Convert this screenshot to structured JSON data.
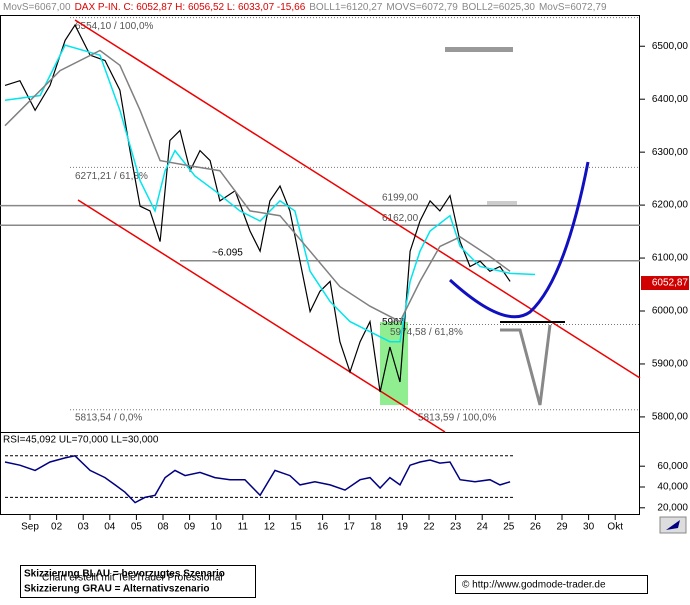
{
  "header": [
    "MovS=6067,00",
    "DAX P-IN. C: 6052,87 H: 6056,52 L: 6033,07 -15,66",
    "BOLL1=6120,27",
    "MOVS=6072,79",
    "BOLL2=6025,30",
    "MovS=6072,79"
  ],
  "chart_data": [
    {
      "type": "line",
      "xlim": [
        -1.128,
        22.932
      ],
      "ylim": [
        5771.5,
        6559
      ],
      "xticks": [
        {
          "value": 0,
          "label": "Sep"
        },
        {
          "value": 1,
          "label": "02"
        },
        {
          "value": 2,
          "label": "03"
        },
        {
          "value": 3,
          "label": "04"
        },
        {
          "value": 4,
          "label": "05"
        },
        {
          "value": 5,
          "label": "08"
        },
        {
          "value": 6,
          "label": "09"
        },
        {
          "value": 7,
          "label": "10"
        },
        {
          "value": 8,
          "label": "11"
        },
        {
          "value": 9,
          "label": "12"
        },
        {
          "value": 10,
          "label": "15"
        },
        {
          "value": 11,
          "label": "16"
        },
        {
          "value": 12,
          "label": "17"
        },
        {
          "value": 13,
          "label": "18"
        },
        {
          "value": 14,
          "label": "19"
        },
        {
          "value": 15,
          "label": "22"
        },
        {
          "value": 16,
          "label": "23"
        },
        {
          "value": 17,
          "label": "24"
        },
        {
          "value": 18,
          "label": "25"
        },
        {
          "value": 19,
          "label": "26"
        },
        {
          "value": 20,
          "label": "29"
        },
        {
          "value": 21,
          "label": "30"
        },
        {
          "value": 22,
          "label": "Okt"
        }
      ],
      "yticks": [
        {
          "value": 5800,
          "label": "5800,00"
        },
        {
          "value": 5900,
          "label": "5900,00"
        },
        {
          "value": 6000,
          "label": "6000,00"
        },
        {
          "value": 6100,
          "label": "6100,00"
        },
        {
          "value": 6200,
          "label": "6200,00"
        },
        {
          "value": 6300,
          "label": "6300,00"
        },
        {
          "value": 6400,
          "label": "6400,00"
        },
        {
          "value": 6500,
          "label": "6500,00"
        }
      ],
      "last": {
        "value": 6052.87,
        "label": "6052,87"
      },
      "series": [
        {
          "color": "#000000",
          "x": [
            -0.94,
            -0.38,
            0.19,
            0.75,
            1.32,
            1.69,
            2.26,
            2.82,
            3.38,
            3.76,
            4.14,
            4.51,
            4.89,
            5.26,
            5.64,
            6.02,
            6.39,
            6.77,
            7.14,
            7.71,
            8.27,
            8.65,
            9.02,
            9.4,
            9.77,
            10.15,
            10.53,
            10.9,
            11.28,
            11.65,
            12.03,
            12.41,
            12.78,
            13.16,
            13.53,
            13.91,
            14.29,
            14.66,
            15.04,
            15.41,
            15.79,
            16.17,
            16.54,
            16.92,
            17.29,
            17.67,
            18.05
          ],
          "values": [
            6426,
            6435,
            6379,
            6426,
            6511,
            6540,
            6483,
            6473,
            6417,
            6303,
            6198,
            6189,
            6131,
            6322,
            6341,
            6265,
            6303,
            6284,
            6208,
            6227,
            6151,
            6113,
            6208,
            6236,
            6189,
            6094,
            5999,
            6037,
            6056,
            5942,
            5885,
            5942,
            5980,
            5847,
            5932,
            5866,
            6113,
            6170,
            6208,
            6189,
            6218,
            6131,
            6084,
            6094,
            6075,
            6084,
            6056
          ]
        },
        {
          "color": "#00e5ee",
          "x": [
            -0.94,
            0.38,
            1.32,
            2.63,
            3.38,
            4.14,
            4.7,
            5.08,
            5.45,
            6.2,
            6.95,
            7.89,
            8.65,
            9.4,
            9.96,
            10.53,
            11.28,
            12.03,
            12.78,
            13.53,
            13.91,
            14.29,
            14.66,
            15.04,
            15.79,
            16.17,
            16.92,
            18.05,
            18.99
          ],
          "values": [
            6398,
            6407,
            6502,
            6483,
            6379,
            6246,
            6189,
            6265,
            6303,
            6255,
            6227,
            6189,
            6170,
            6208,
            6189,
            6075,
            6018,
            5980,
            5961,
            5942,
            5942,
            6056,
            6113,
            6151,
            6180,
            6122,
            6084,
            6071,
            6069
          ]
        },
        {
          "color": "#808080",
          "x": [
            -0.94,
            1.13,
            2.63,
            3.38,
            4.14,
            4.89,
            6.02,
            7.14,
            8.27,
            9.4,
            10.53,
            11.65,
            12.78,
            13.91,
            14.66,
            15.41,
            16.17,
            17.29,
            18.05
          ],
          "values": [
            6350,
            6454,
            6492,
            6464,
            6379,
            6284,
            6274,
            6265,
            6189,
            6180,
            6113,
            6046,
            6009,
            5980,
            6056,
            6122,
            6140,
            6103,
            6075
          ]
        }
      ],
      "annotations": [
        {
          "text": "6554,10 / 100,0%",
          "value": 6554.1
        },
        {
          "text": "6271,21 / 61,8%",
          "value": 6271.21
        },
        {
          "text": "6199,00",
          "value": 6199
        },
        {
          "text": "6162,00",
          "value": 6162
        },
        {
          "text": "~6.095",
          "value": 6095
        },
        {
          "text": "5967",
          "value": 5967
        },
        {
          "text": "5974,58 / 61,8%",
          "value": 5974.58
        },
        {
          "text": "5813,54 / 0,0%",
          "value": 5813.54
        },
        {
          "text": "5813,59 / 100,0%",
          "value": 5813.59
        }
      ]
    },
    {
      "type": "line",
      "title": "RSI=45,092 UL=70,000 LL=30,000",
      "xlim": [
        -1.128,
        22.932
      ],
      "ylim": [
        15,
        90
      ],
      "yticks": [
        {
          "value": 20,
          "label": "20,000"
        },
        {
          "value": 40,
          "label": "40,000"
        },
        {
          "value": 60,
          "label": "60,000"
        }
      ],
      "bands": [
        70,
        30
      ],
      "series": [
        {
          "color": "#000080",
          "x": [
            -0.94,
            -0.38,
            0.19,
            0.75,
            1.32,
            1.69,
            2.26,
            2.82,
            3.2,
            3.57,
            3.95,
            4.32,
            4.7,
            5.08,
            5.45,
            5.83,
            6.39,
            6.95,
            7.52,
            8.08,
            8.65,
            9.21,
            9.77,
            10.15,
            10.71,
            11.28,
            11.84,
            12.41,
            12.78,
            13.16,
            13.53,
            13.91,
            14.29,
            14.66,
            15.04,
            15.41,
            15.79,
            16.17,
            16.73,
            17.29,
            17.67,
            18.05
          ],
          "values": [
            64,
            61,
            56,
            64,
            68,
            70,
            56,
            49,
            42,
            35,
            25,
            30,
            32,
            49,
            56,
            51,
            54,
            49,
            47,
            47,
            32,
            56,
            51,
            42,
            45,
            42,
            37,
            47,
            49,
            39,
            49,
            42,
            61,
            64,
            66,
            63,
            64,
            47,
            45,
            47,
            42,
            45
          ]
        }
      ]
    }
  ],
  "footer": {
    "credit": "Chart erstellt mit TeleTrader Professional",
    "legend_blue": "Skizzierung BLAU = bevorzugtes Szenario",
    "legend_gray": "Skizzierung GRAU = Alternativszenario",
    "source": "© http://www.godmode-trader.de"
  }
}
